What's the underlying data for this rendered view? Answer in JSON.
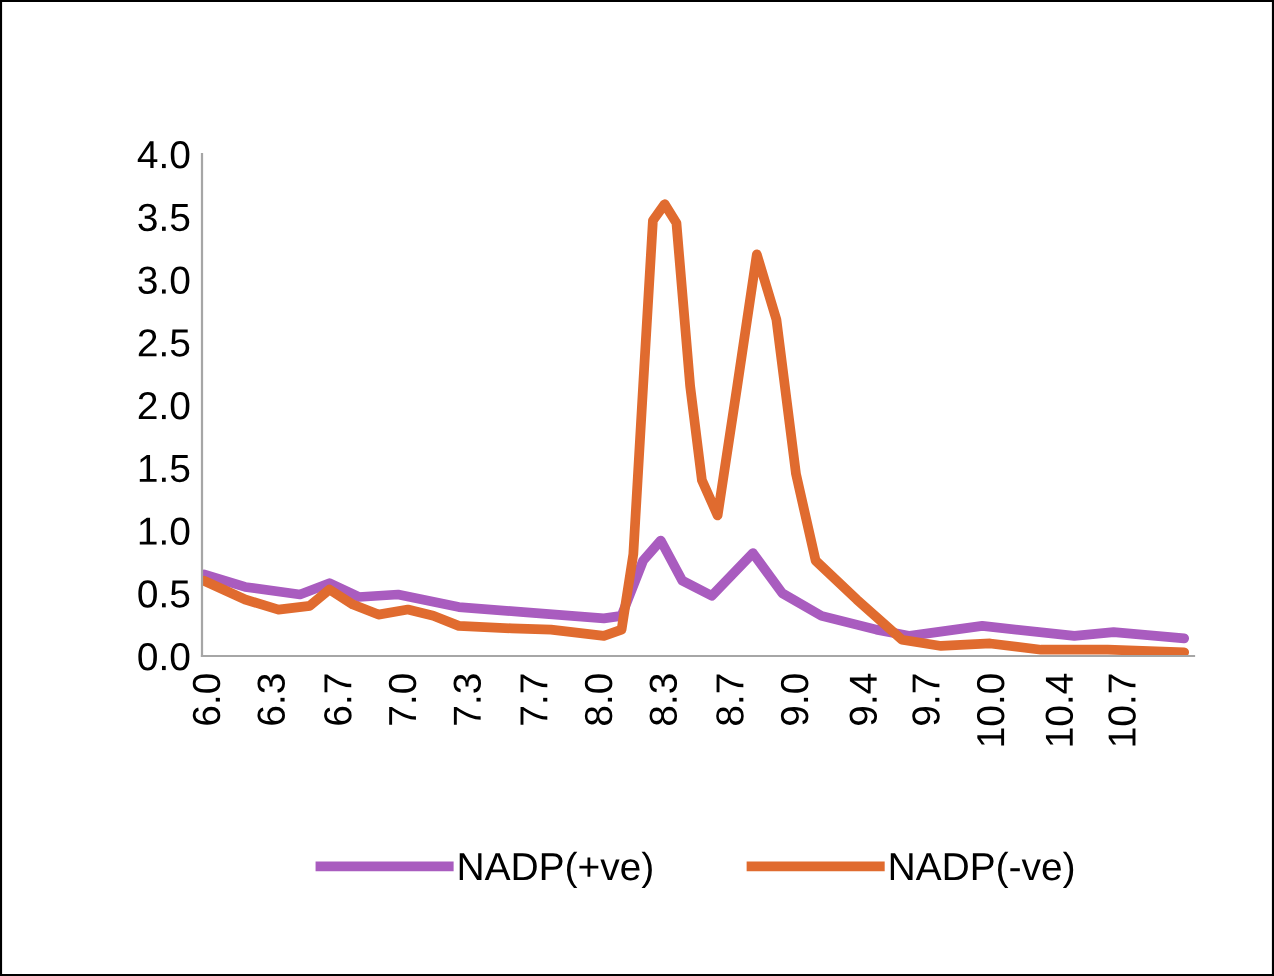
{
  "chart_data": {
    "type": "line",
    "legend": "bottom",
    "grid": false,
    "marker": "none",
    "line_style": "solid",
    "xlim": [
      5.96,
      11.02
    ],
    "xticks": [
      {
        "value": 6.0,
        "label": "6.0"
      },
      {
        "value": 6.33,
        "label": "6.3"
      },
      {
        "value": 6.67,
        "label": "6.7"
      },
      {
        "value": 7.0,
        "label": "7.0"
      },
      {
        "value": 7.33,
        "label": "7.3"
      },
      {
        "value": 7.67,
        "label": "7.7"
      },
      {
        "value": 8.0,
        "label": "8.0"
      },
      {
        "value": 8.33,
        "label": "8.3"
      },
      {
        "value": 8.67,
        "label": "8.7"
      },
      {
        "value": 9.0,
        "label": "9.0"
      },
      {
        "value": 9.35,
        "label": "9.4"
      },
      {
        "value": 9.67,
        "label": "9.7"
      },
      {
        "value": 10.0,
        "label": "10.0"
      },
      {
        "value": 10.35,
        "label": "10.4"
      },
      {
        "value": 10.67,
        "label": "10.7"
      }
    ],
    "ylim": [
      0,
      4
    ],
    "yticks": [
      {
        "value": 0,
        "label": "0.0"
      },
      {
        "value": 0.5,
        "label": "0.5"
      },
      {
        "value": 1,
        "label": "1.0"
      },
      {
        "value": 1.5,
        "label": "1.5"
      },
      {
        "value": 2,
        "label": "2.0"
      },
      {
        "value": 2.5,
        "label": "2.5"
      },
      {
        "value": 3,
        "label": "3.0"
      },
      {
        "value": 3.5,
        "label": "3.5"
      },
      {
        "value": 4,
        "label": "4.0"
      }
    ],
    "series": [
      {
        "name": "NADP(+ve)",
        "color": "#a95cbf",
        "x": [
          5.97,
          6.18,
          6.46,
          6.61,
          6.76,
          6.96,
          7.27,
          7.6,
          8.01,
          8.1,
          8.21,
          8.3,
          8.41,
          8.56,
          8.77,
          8.92,
          9.12,
          9.4,
          9.57,
          9.94,
          10.41,
          10.61,
          10.97
        ],
        "values": [
          0.65,
          0.55,
          0.49,
          0.58,
          0.47,
          0.49,
          0.39,
          0.35,
          0.3,
          0.32,
          0.76,
          0.92,
          0.6,
          0.48,
          0.82,
          0.5,
          0.32,
          0.21,
          0.16,
          0.24,
          0.16,
          0.19,
          0.14
        ]
      },
      {
        "name": "NADP(-ve)",
        "color": "#e06b2f",
        "x": [
          5.97,
          6.18,
          6.35,
          6.51,
          6.61,
          6.73,
          6.86,
          7.01,
          7.14,
          7.27,
          7.54,
          7.74,
          8.01,
          8.1,
          8.16,
          8.21,
          8.26,
          8.32,
          8.38,
          8.45,
          8.51,
          8.59,
          8.69,
          8.79,
          8.89,
          8.99,
          9.09,
          9.3,
          9.53,
          9.73,
          9.98,
          10.24,
          10.58,
          10.97
        ],
        "values": [
          0.6,
          0.45,
          0.37,
          0.4,
          0.53,
          0.41,
          0.33,
          0.37,
          0.32,
          0.24,
          0.22,
          0.21,
          0.16,
          0.21,
          0.81,
          2.15,
          3.47,
          3.6,
          3.45,
          2.15,
          1.4,
          1.12,
          2.15,
          3.2,
          2.68,
          1.45,
          0.76,
          0.45,
          0.13,
          0.08,
          0.1,
          0.05,
          0.05,
          0.03
        ]
      }
    ]
  }
}
